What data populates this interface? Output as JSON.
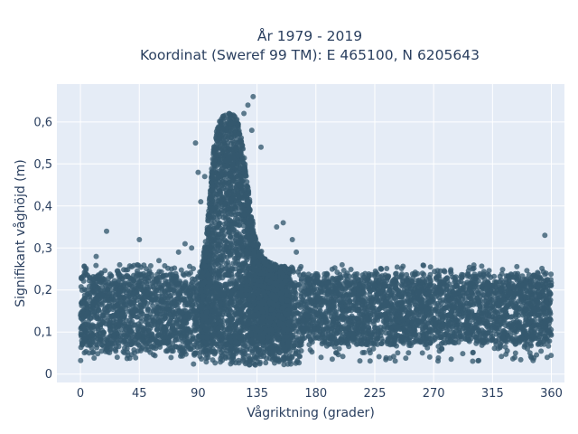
{
  "chart_data": {
    "type": "scatter",
    "title_line1": "År 1979 - 2019",
    "title_line2": "Koordinat (Sweref 99 TM): E 465100, N 6205643",
    "xlabel": "Vågriktning (grader)",
    "ylabel": "Signifikant våghöjd (m)",
    "xlim": [
      -18,
      370
    ],
    "ylim": [
      -0.02,
      0.69
    ],
    "x_ticks": [
      0,
      45,
      90,
      135,
      180,
      225,
      270,
      315,
      360
    ],
    "x_tick_labels": [
      "0",
      "45",
      "90",
      "135",
      "180",
      "225",
      "270",
      "315",
      "360"
    ],
    "y_ticks": [
      0,
      0.1,
      0.2,
      0.3,
      0.4,
      0.5,
      0.6
    ],
    "y_tick_labels": [
      "0",
      "0,1",
      "0,2",
      "0,3",
      "0,4",
      "0,5",
      "0,6"
    ],
    "grid": true,
    "colors": {
      "plot_background": "#e5ecf6",
      "grid": "#ffffff",
      "marker": "#34586e",
      "text": "#2a3f5f"
    },
    "dense_bands": [
      {
        "x_range": [
          0,
          360
        ],
        "y_range": [
          0.07,
          0.22
        ]
      },
      {
        "x_range": [
          0,
          85
        ],
        "y_range": [
          0.05,
          0.24
        ]
      },
      {
        "x_range": [
          85,
          170
        ],
        "y_range": [
          0.02,
          0.25
        ]
      },
      {
        "x_range": [
          170,
          360
        ],
        "y_range": [
          0.08,
          0.24
        ]
      }
    ],
    "peak_envelope": [
      {
        "x": 92,
        "y": 0.24
      },
      {
        "x": 97,
        "y": 0.35
      },
      {
        "x": 100,
        "y": 0.48
      },
      {
        "x": 103,
        "y": 0.57
      },
      {
        "x": 106,
        "y": 0.6
      },
      {
        "x": 110,
        "y": 0.62
      },
      {
        "x": 115,
        "y": 0.62
      },
      {
        "x": 120,
        "y": 0.61
      },
      {
        "x": 124,
        "y": 0.55
      },
      {
        "x": 127,
        "y": 0.47
      },
      {
        "x": 130,
        "y": 0.4
      },
      {
        "x": 133,
        "y": 0.34
      },
      {
        "x": 137,
        "y": 0.3
      },
      {
        "x": 142,
        "y": 0.27
      },
      {
        "x": 150,
        "y": 0.26
      },
      {
        "x": 160,
        "y": 0.25
      }
    ],
    "outliers": [
      {
        "x": 20,
        "y": 0.34
      },
      {
        "x": 45,
        "y": 0.32
      },
      {
        "x": 12,
        "y": 0.28
      },
      {
        "x": 88,
        "y": 0.55
      },
      {
        "x": 90,
        "y": 0.48
      },
      {
        "x": 95,
        "y": 0.47
      },
      {
        "x": 92,
        "y": 0.41
      },
      {
        "x": 102,
        "y": 0.53
      },
      {
        "x": 125,
        "y": 0.62
      },
      {
        "x": 128,
        "y": 0.64
      },
      {
        "x": 132,
        "y": 0.66
      },
      {
        "x": 138,
        "y": 0.54
      },
      {
        "x": 131,
        "y": 0.58
      },
      {
        "x": 150,
        "y": 0.35
      },
      {
        "x": 155,
        "y": 0.36
      },
      {
        "x": 162,
        "y": 0.32
      },
      {
        "x": 165,
        "y": 0.29
      },
      {
        "x": 355,
        "y": 0.33
      },
      {
        "x": 80,
        "y": 0.31
      },
      {
        "x": 75,
        "y": 0.29
      },
      {
        "x": 85,
        "y": 0.3
      },
      {
        "x": 30,
        "y": 0.26
      },
      {
        "x": 60,
        "y": 0.27
      },
      {
        "x": 230,
        "y": 0.25
      },
      {
        "x": 300,
        "y": 0.25
      },
      {
        "x": 200,
        "y": 0.26
      }
    ]
  }
}
